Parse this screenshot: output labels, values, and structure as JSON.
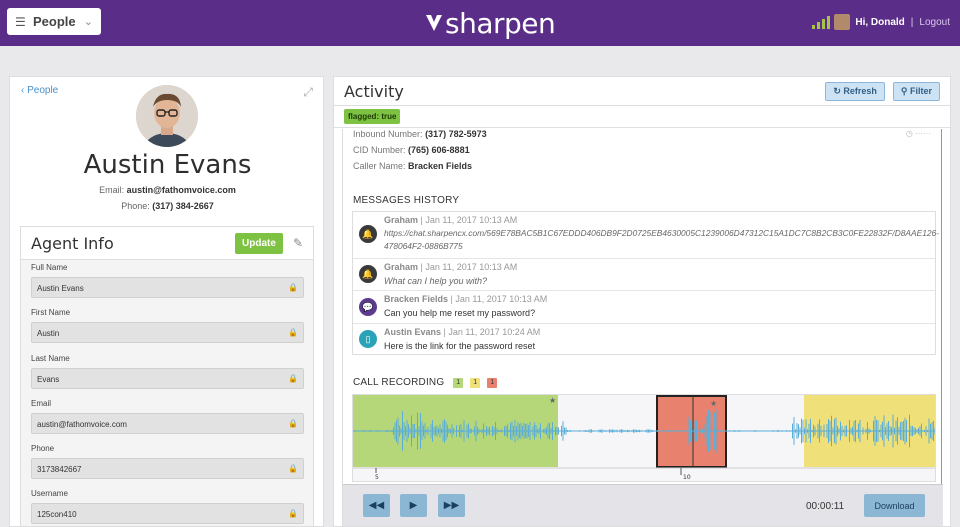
{
  "topbar": {
    "section_label": "People",
    "logo_text": "sharpen",
    "greeting": "Hi, Donald",
    "separator": "|",
    "logout": "Logout"
  },
  "profile": {
    "back_link": "People",
    "name": "Austin Evans",
    "email_label": "Email:",
    "email": "austin@fathomvoice.com",
    "phone_label": "Phone:",
    "phone": "(317) 384-2667"
  },
  "agent_info": {
    "title": "Agent Info",
    "update_label": "Update",
    "fields": [
      {
        "label": "Full Name",
        "value": "Austin Evans"
      },
      {
        "label": "First Name",
        "value": "Austin"
      },
      {
        "label": "Last Name",
        "value": "Evans"
      },
      {
        "label": "Email",
        "value": "austin@fathomvoice.com"
      },
      {
        "label": "Phone",
        "value": "3173842667"
      },
      {
        "label": "Username",
        "value": "125con410"
      }
    ]
  },
  "activity": {
    "title": "Activity",
    "refresh_label": "Refresh",
    "filter_label": "Filter",
    "flag": "flagged: true",
    "inbound_label": "Inbound Number:",
    "inbound": "(317) 782-5973",
    "cid_label": "CID Number:",
    "cid": "(765) 606-8881",
    "caller_label": "Caller Name:",
    "caller": "Bracken Fields",
    "messages_title": "MESSAGES HISTORY",
    "messages": [
      {
        "author": "Graham",
        "time": "| Jan 11, 2017 10:13 AM",
        "text": "https://chat.sharpencx.com/569E78BAC5B1C67EDDD406DB9F2D0725EB4630005C1239006D47312C15A1DC7C8B2CB3C0FE22832F/D8AAE126-478064F2-0886B775",
        "icon": "bell-icon",
        "color": "#3a3a3a"
      },
      {
        "author": "Graham",
        "time": "| Jan 11, 2017 10:13 AM",
        "text": "What can I help you with?",
        "icon": "bell-icon",
        "color": "#3a3a3a"
      },
      {
        "author": "Bracken Fields",
        "time": "| Jan 11, 2017 10:13 AM",
        "text": "Can you help me reset my password?",
        "icon": "chat-icon",
        "color": "#5c3a8e"
      },
      {
        "author": "Austin Evans",
        "time": "| Jan 11, 2017 10:24 AM",
        "text": "Here is the link for the password reset",
        "icon": "phone-icon",
        "color": "#2aa3b8"
      }
    ],
    "recording_title": "CALL RECORDING",
    "recording_badges": [
      {
        "text": "1",
        "color": "#b5d77a"
      },
      {
        "text": "1",
        "color": "#f0e07a"
      },
      {
        "text": "1",
        "color": "#e8826e"
      }
    ],
    "timeline_labels": [
      "5",
      "10"
    ],
    "timer": "00:00:11",
    "download_label": "Download"
  }
}
